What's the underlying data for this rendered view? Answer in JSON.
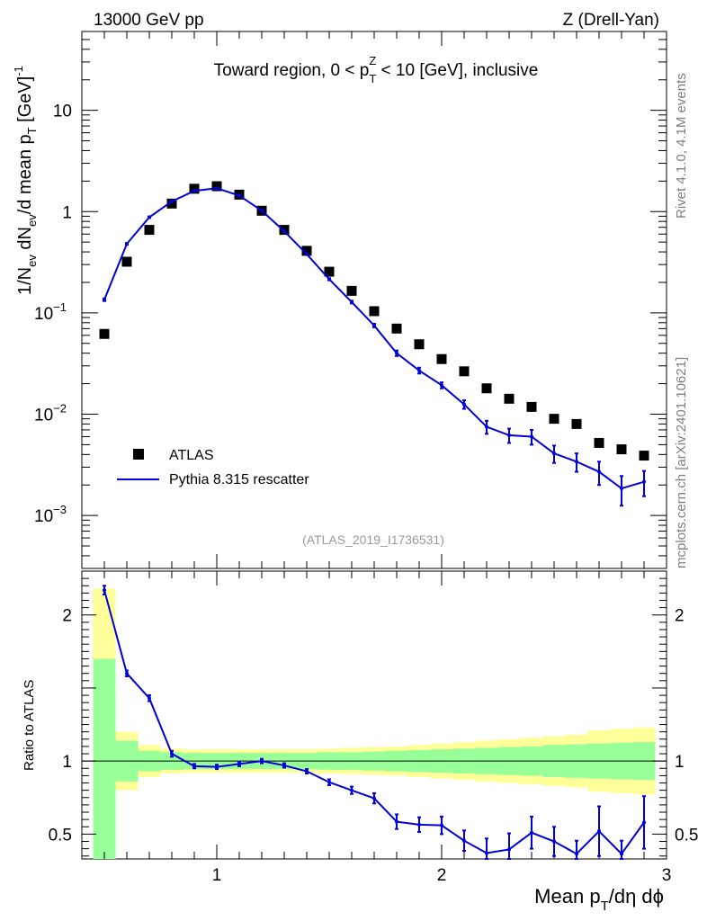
{
  "header": {
    "left": "13000 GeV pp",
    "right": "Z (Drell-Yan)"
  },
  "side": {
    "rivet": "Rivet 4.1.0,  4.1M events",
    "mcplots": "mcplots.cern.ch [arXiv:2401.10621]"
  },
  "chart_data": [
    {
      "type": "line",
      "panel": "main",
      "title_parts": [
        "Toward region, 0 < p",
        "T",
        "Z",
        " < 10 [GeV], inclusive"
      ],
      "ylabel_parts": [
        "1/N",
        "ev",
        " dN",
        "ev",
        "/d mean p",
        "T",
        " [GeV]",
        "-1"
      ],
      "yscale": "log",
      "ylim": [
        0.0003,
        60
      ],
      "xlim": [
        0.4,
        3.0
      ],
      "yticks": [
        {
          "v": 10,
          "base": "10",
          "exp": ""
        },
        {
          "v": 1,
          "base": "1",
          "exp": ""
        },
        {
          "v": 0.1,
          "base": "10",
          "exp": "−1"
        },
        {
          "v": 0.01,
          "base": "10",
          "exp": "−2"
        },
        {
          "v": 0.001,
          "base": "10",
          "exp": "−3"
        }
      ],
      "analysis_id": "(ATLAS_2019_I1736531)",
      "legend": [
        {
          "label": "ATLAS",
          "marker": "square",
          "color": "#000000"
        },
        {
          "label": "Pythia 8.315 rescatter",
          "marker": "line",
          "color": "#0000dd"
        }
      ],
      "series": [
        {
          "name": "ATLAS",
          "color": "#000000",
          "x": [
            0.5,
            0.6,
            0.7,
            0.8,
            0.9,
            1.0,
            1.1,
            1.2,
            1.3,
            1.4,
            1.5,
            1.6,
            1.7,
            1.8,
            1.9,
            2.0,
            2.1,
            2.2,
            2.3,
            2.4,
            2.5,
            2.6,
            2.7,
            2.8,
            2.9
          ],
          "y": [
            0.062,
            0.32,
            0.66,
            1.2,
            1.68,
            1.78,
            1.47,
            1.02,
            0.66,
            0.41,
            0.255,
            0.165,
            0.104,
            0.07,
            0.049,
            0.035,
            0.0265,
            0.018,
            0.0142,
            0.0118,
            0.009,
            0.008,
            0.0052,
            0.0045,
            0.0039
          ]
        },
        {
          "name": "Pythia 8.315 rescatter",
          "color": "#0000dd",
          "x": [
            0.5,
            0.6,
            0.7,
            0.8,
            0.9,
            1.0,
            1.1,
            1.2,
            1.3,
            1.4,
            1.5,
            1.6,
            1.7,
            1.8,
            1.9,
            2.0,
            2.1,
            2.2,
            2.3,
            2.4,
            2.5,
            2.6,
            2.7,
            2.8,
            2.9
          ],
          "y": [
            0.135,
            0.48,
            0.88,
            1.26,
            1.6,
            1.7,
            1.44,
            1.02,
            0.64,
            0.38,
            0.215,
            0.128,
            0.075,
            0.04,
            0.027,
            0.0193,
            0.0125,
            0.0075,
            0.0062,
            0.006,
            0.0041,
            0.0034,
            0.0027,
            0.00185,
            0.00215
          ],
          "err": [
            0.004,
            0.01,
            0.015,
            0.02,
            0.025,
            0.025,
            0.02,
            0.015,
            0.01,
            0.007,
            0.005,
            0.004,
            0.003,
            0.0025,
            0.0018,
            0.0013,
            0.0012,
            0.0011,
            0.001,
            0.001,
            0.0008,
            0.0007,
            0.0007,
            0.0006,
            0.0006
          ]
        }
      ]
    },
    {
      "type": "line",
      "panel": "ratio",
      "ylabel": "Ratio to ATLAS",
      "xlabel_parts": [
        "Mean p",
        "T",
        "/dη dϕ"
      ],
      "ylim": [
        0.33,
        2.3
      ],
      "xlim": [
        0.4,
        3.0
      ],
      "yticks": [
        {
          "v": 0.5,
          "label": "0.5"
        },
        {
          "v": 1,
          "label": "1"
        },
        {
          "v": 2,
          "label": "2"
        }
      ],
      "xticks": [
        {
          "v": 1,
          "label": "1"
        },
        {
          "v": 2,
          "label": "2"
        },
        {
          "v": 3,
          "label": "3"
        }
      ],
      "bands": {
        "edges": [
          0.45,
          0.55,
          0.65,
          0.75,
          0.85,
          0.95,
          1.05,
          1.15,
          1.25,
          1.35,
          1.45,
          1.55,
          1.65,
          1.75,
          1.85,
          1.95,
          2.05,
          2.15,
          2.25,
          2.35,
          2.45,
          2.55,
          2.65,
          2.75,
          2.85,
          2.95
        ],
        "green": [
          0.7,
          0.14,
          0.07,
          0.06,
          0.055,
          0.055,
          0.055,
          0.055,
          0.055,
          0.055,
          0.06,
          0.06,
          0.065,
          0.07,
          0.075,
          0.08,
          0.085,
          0.09,
          0.095,
          0.1,
          0.11,
          0.115,
          0.12,
          0.125,
          0.13
        ],
        "yellow": [
          1.18,
          0.2,
          0.11,
          0.085,
          0.08,
          0.08,
          0.08,
          0.08,
          0.08,
          0.08,
          0.085,
          0.09,
          0.095,
          0.1,
          0.11,
          0.12,
          0.13,
          0.14,
          0.15,
          0.16,
          0.17,
          0.18,
          0.21,
          0.22,
          0.23
        ]
      },
      "series": [
        {
          "name": "Pythia 8.315 rescatter / ATLAS",
          "color": "#0000dd",
          "x": [
            0.5,
            0.6,
            0.7,
            0.8,
            0.9,
            1.0,
            1.1,
            1.2,
            1.3,
            1.4,
            1.5,
            1.6,
            1.7,
            1.8,
            1.9,
            2.0,
            2.1,
            2.2,
            2.3,
            2.4,
            2.5,
            2.6,
            2.7,
            2.8,
            2.9
          ],
          "y": [
            2.17,
            1.6,
            1.43,
            1.05,
            0.965,
            0.96,
            0.98,
            1.0,
            0.97,
            0.93,
            0.855,
            0.8,
            0.745,
            0.585,
            0.565,
            0.56,
            0.455,
            0.37,
            0.395,
            0.51,
            0.45,
            0.365,
            0.52,
            0.365,
            0.58
          ],
          "err": [
            0.03,
            0.02,
            0.02,
            0.02,
            0.015,
            0.015,
            0.015,
            0.015,
            0.015,
            0.015,
            0.02,
            0.025,
            0.035,
            0.05,
            0.05,
            0.06,
            0.07,
            0.1,
            0.11,
            0.11,
            0.1,
            0.09,
            0.17,
            0.09,
            0.18
          ]
        }
      ]
    }
  ]
}
